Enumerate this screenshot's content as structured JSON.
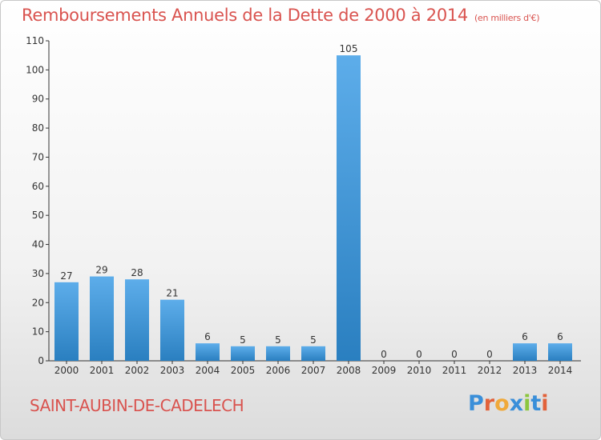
{
  "title": "Remboursements Annuels de la Dette de 2000 à 2014",
  "subtitle": "(en milliers d'€)",
  "commune": "SAINT-AUBIN-DE-CADELECH",
  "logo": {
    "text": "Proxiti",
    "letter_colors": [
      "#3a8fd9",
      "#e2623a",
      "#f0a93a",
      "#3a8fd9",
      "#8cc63f",
      "#3a8fd9",
      "#e2623a"
    ]
  },
  "colors": {
    "bar_top": "#5dadea",
    "bar_bottom": "#2a7fc0",
    "title": "#d9534f"
  },
  "chart_data": {
    "type": "bar",
    "categories": [
      "2000",
      "2001",
      "2002",
      "2003",
      "2004",
      "2005",
      "2006",
      "2007",
      "2008",
      "2009",
      "2010",
      "2011",
      "2012",
      "2013",
      "2014"
    ],
    "values": [
      27,
      29,
      28,
      21,
      6,
      5,
      5,
      5,
      105,
      0,
      0,
      0,
      0,
      6,
      6
    ],
    "ylim": [
      0,
      110
    ],
    "yticks": [
      0,
      10,
      20,
      30,
      40,
      50,
      60,
      70,
      80,
      90,
      100,
      110
    ],
    "grid": false,
    "xlabel": "",
    "ylabel": ""
  }
}
